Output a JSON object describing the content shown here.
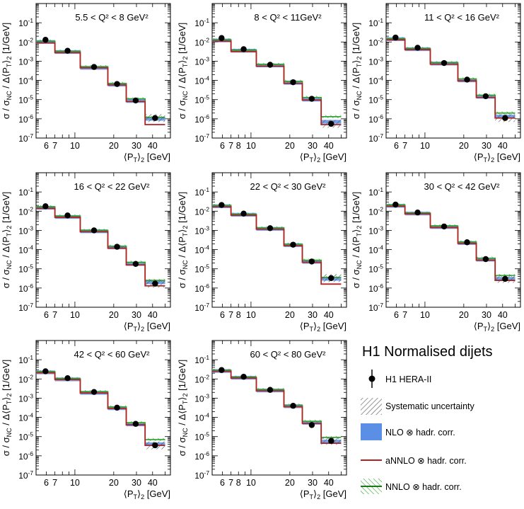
{
  "figure": {
    "legend": {
      "title": "H1 Normalised dijets",
      "entries": [
        {
          "label": "H1 HERA-II",
          "kind": "data"
        },
        {
          "label": "Systematic uncertainty",
          "kind": "hatch"
        },
        {
          "label": "NLO ⊗ hadr. corr.",
          "kind": "band"
        },
        {
          "label": "aNNLO ⊗ hadr. corr.",
          "kind": "line"
        },
        {
          "label": "NNLO ⊗ hadr. corr.",
          "kind": "greenband"
        }
      ]
    },
    "colors": {
      "data": "#000000",
      "systematic": "#555555",
      "nlo_band": "#5b8fe6",
      "annlo_line": "#b22222",
      "nnlo_band": "#2ca02c"
    }
  },
  "chart_data": {
    "type": "line",
    "description_axes": {
      "x_scale": "log",
      "y_scale": "log",
      "xlim": [
        5,
        55
      ],
      "ylim": [
        1e-07,
        1
      ],
      "x_ticks": [
        {
          "value": 6,
          "label": "6"
        },
        {
          "value": 7,
          "label": "7"
        },
        {
          "value": 8,
          "label": "8"
        },
        {
          "value": 10,
          "label": "10"
        },
        {
          "value": 20,
          "label": "20"
        },
        {
          "value": 30,
          "label": "30"
        },
        {
          "value": 40,
          "label": "40"
        }
      ],
      "y_ticks": [
        {
          "value": 1e-07,
          "label": "10⁻⁷"
        },
        {
          "value": 1e-06,
          "label": "10⁻⁶"
        },
        {
          "value": 1e-05,
          "label": "10⁻⁵"
        },
        {
          "value": 0.0001,
          "label": "10⁻⁴"
        },
        {
          "value": 0.001,
          "label": "10⁻³"
        },
        {
          "value": 0.01,
          "label": "10⁻²"
        },
        {
          "value": 0.1,
          "label": "10⁻¹"
        }
      ],
      "ylabel": "σ / σ_NC / Δ⟨P_T⟩₂ [1/GeV]",
      "xlabel": "⟨P_T⟩₂ [GeV]"
    },
    "bin_edges": [
      5,
      7,
      11,
      18,
      25,
      35,
      50
    ],
    "panels": [
      {
        "title": "5.5 < Q² < 8 GeV²",
        "x_tick_values": [
          6,
          7,
          10,
          20,
          30,
          40
        ],
        "data": [
          0.013,
          0.0035,
          0.0005,
          6.5e-05,
          9e-06,
          1.1e-06
        ],
        "nlo": [
          0.01,
          0.003,
          0.00045,
          6e-05,
          8.5e-06,
          1e-06
        ],
        "annlo": [
          0.009,
          0.0028,
          0.00045,
          5.8e-05,
          8e-06,
          5e-07
        ],
        "nnlo": [
          0.011,
          0.0033,
          0.00052,
          7e-05,
          1.1e-05,
          1.2e-06
        ]
      },
      {
        "title": "8 < Q² < 11GeV²",
        "x_tick_values": [
          6,
          7,
          8,
          10,
          20,
          30,
          40
        ],
        "data": [
          0.016,
          0.0042,
          0.00065,
          8e-05,
          1.1e-05,
          5.5e-07
        ],
        "nlo": [
          0.012,
          0.0035,
          0.0006,
          7.5e-05,
          1e-05,
          7e-07
        ],
        "annlo": [
          0.011,
          0.0032,
          0.00055,
          7e-05,
          9.5e-06,
          5e-07
        ],
        "nnlo": [
          0.013,
          0.0038,
          0.00068,
          9e-05,
          1.3e-05,
          1.3e-06
        ]
      },
      {
        "title": "11 < Q² < 16 GeV²",
        "x_tick_values": [
          6,
          7,
          10,
          20,
          30,
          40
        ],
        "data": [
          0.017,
          0.005,
          0.0008,
          0.00011,
          1.5e-05,
          1.1e-06
        ],
        "nlo": [
          0.014,
          0.0042,
          0.00075,
          0.0001,
          1.4e-05,
          1.3e-06
        ],
        "annlo": [
          0.013,
          0.004,
          0.0007,
          9.5e-05,
          1.3e-05,
          1.1e-06
        ],
        "nnlo": [
          0.015,
          0.0046,
          0.00085,
          0.00012,
          1.7e-05,
          2e-06
        ]
      },
      {
        "title": "16 < Q² < 22 GeV²",
        "x_tick_values": [
          6,
          7,
          10,
          20,
          30,
          40
        ],
        "data": [
          0.018,
          0.006,
          0.001,
          0.00014,
          1.8e-05,
          1.7e-06
        ],
        "nlo": [
          0.015,
          0.005,
          0.0009,
          0.00013,
          1.8e-05,
          2e-06
        ],
        "annlo": [
          0.014,
          0.0048,
          0.00085,
          0.00012,
          1.6e-05,
          1.3e-06
        ],
        "nnlo": [
          0.017,
          0.0056,
          0.001,
          0.00015,
          2.2e-05,
          2.5e-06
        ]
      },
      {
        "title": "22 < Q² < 30 GeV²",
        "x_tick_values": [
          6,
          7,
          8,
          10,
          20,
          30,
          40
        ],
        "data": [
          0.021,
          0.0075,
          0.0013,
          0.00018,
          2.4e-05,
          3.3e-06
        ],
        "nlo": [
          0.018,
          0.0065,
          0.0012,
          0.00017,
          2.3e-05,
          3e-06
        ],
        "annlo": [
          0.017,
          0.0062,
          0.00115,
          0.00016,
          2.2e-05,
          1.6e-06
        ],
        "nnlo": [
          0.02,
          0.007,
          0.00135,
          0.00019,
          2.8e-05,
          3.6e-06
        ]
      },
      {
        "title": "30 < Q² < 42 GeV²",
        "x_tick_values": [
          6,
          7,
          10,
          20,
          30,
          40
        ],
        "data": [
          0.022,
          0.0085,
          0.0016,
          0.00024,
          3.2e-05,
          3e-06
        ],
        "nlo": [
          0.019,
          0.0075,
          0.0015,
          0.00022,
          3e-05,
          3e-06
        ],
        "annlo": [
          0.018,
          0.0072,
          0.0014,
          0.00021,
          2.8e-05,
          2.5e-06
        ],
        "nnlo": [
          0.021,
          0.008,
          0.0017,
          0.00025,
          3.6e-05,
          4.5e-06
        ]
      },
      {
        "title": "42 < Q² < 60 GeV²",
        "x_tick_values": [
          6,
          7,
          10,
          20,
          30,
          40
        ],
        "data": [
          0.025,
          0.011,
          0.0021,
          0.00032,
          4.6e-05,
          3.5e-06
        ],
        "nlo": [
          0.022,
          0.0095,
          0.0019,
          0.0003,
          4.3e-05,
          4e-06
        ],
        "annlo": [
          0.021,
          0.0092,
          0.00185,
          0.00029,
          4.1e-05,
          3.5e-06
        ],
        "nnlo": [
          0.024,
          0.0105,
          0.0022,
          0.00035,
          5.3e-05,
          7e-06
        ]
      },
      {
        "title": "60 < Q² < 80 GeV²",
        "x_tick_values": [
          6,
          7,
          8,
          10,
          20,
          30,
          40
        ],
        "data": [
          0.029,
          0.013,
          0.0027,
          0.0004,
          4e-05,
          6e-06
        ],
        "nlo": [
          0.026,
          0.0115,
          0.0025,
          0.00038,
          5.2e-05,
          5.5e-06
        ],
        "annlo": [
          0.025,
          0.011,
          0.0024,
          0.00036,
          4.9e-05,
          4.5e-06
        ],
        "nnlo": [
          0.028,
          0.0125,
          0.0028,
          0.00043,
          6.3e-05,
          9e-06
        ]
      }
    ]
  }
}
